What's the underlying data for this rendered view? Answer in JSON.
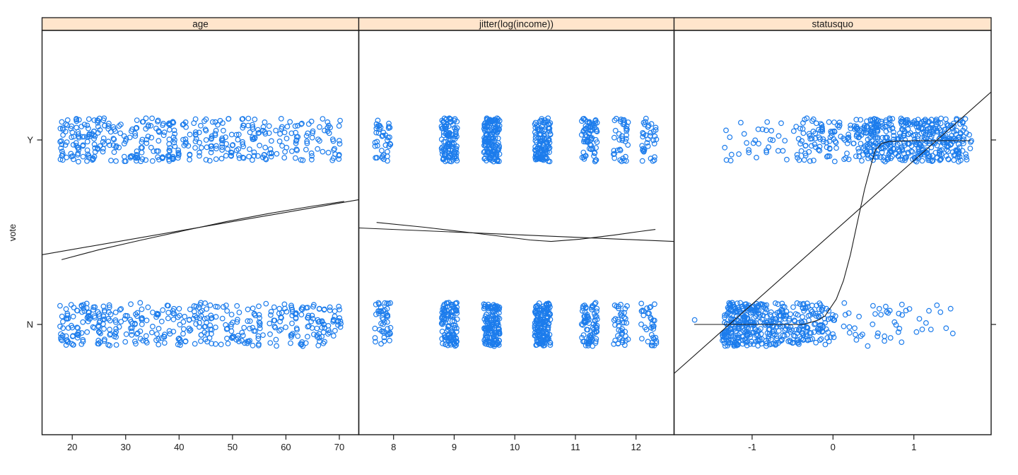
{
  "figure": {
    "ylab": "vote",
    "y_levels": [
      "Y",
      "N"
    ],
    "seed": 11,
    "colors": {
      "point": "#1C7CEC",
      "strip_fill": "#FFE5CC",
      "fit_line": "#1A1A1A",
      "border": "#1A1A1A",
      "background": "#FFFFFF"
    }
  },
  "chart_data": [
    {
      "type": "scatter",
      "title": "age",
      "x_tick_values": [
        20,
        30,
        40,
        50,
        60,
        70
      ],
      "x_range": [
        18,
        71
      ],
      "y_categories": [
        "Y",
        "N"
      ],
      "points": {
        "Y": {
          "kind": "uniform_int",
          "min": 18,
          "max": 70,
          "count": 430,
          "skew": 1.1,
          "xjitter": 0.3
        },
        "N": {
          "kind": "uniform_int",
          "min": 18,
          "max": 70,
          "count": 430,
          "skew": 1.1,
          "xjitter": 0.3
        }
      },
      "lines": {
        "linear": [
          [
            14.4,
            0.378
          ],
          [
            73.6,
            0.676
          ]
        ],
        "smooth": [
          [
            18.0,
            0.351
          ],
          [
            25.0,
            0.405
          ],
          [
            33.0,
            0.458
          ],
          [
            40.9,
            0.508
          ],
          [
            48.8,
            0.557
          ],
          [
            56.8,
            0.601
          ],
          [
            64.7,
            0.64
          ],
          [
            70.9,
            0.667
          ]
        ]
      }
    },
    {
      "type": "scatter",
      "title": "jitter(log(income))",
      "x_tick_values": [
        8,
        9,
        10,
        11,
        12
      ],
      "x_range": [
        7.7,
        12.35
      ],
      "y_categories": [
        "Y",
        "N"
      ],
      "points": {
        "Y": {
          "kind": "columns",
          "values": [
            7.82,
            8.92,
            9.62,
            10.46,
            11.23,
            11.74,
            12.21
          ],
          "counts": [
            40,
            110,
            150,
            120,
            70,
            38,
            35
          ],
          "xjitter": 0.13
        },
        "N": {
          "kind": "columns",
          "values": [
            7.82,
            8.92,
            9.62,
            10.46,
            11.23,
            11.74,
            12.21
          ],
          "counts": [
            45,
            110,
            145,
            155,
            75,
            40,
            35
          ],
          "xjitter": 0.13
        }
      },
      "lines": {
        "linear": [
          [
            7.43,
            0.523
          ],
          [
            12.62,
            0.45
          ]
        ],
        "smooth": [
          [
            7.72,
            0.553
          ],
          [
            8.51,
            0.527
          ],
          [
            9.21,
            0.5
          ],
          [
            9.79,
            0.477
          ],
          [
            10.25,
            0.458
          ],
          [
            10.6,
            0.45
          ],
          [
            11.07,
            0.462
          ],
          [
            11.65,
            0.485
          ],
          [
            12.06,
            0.504
          ],
          [
            12.32,
            0.515
          ]
        ]
      }
    },
    {
      "type": "scatter",
      "title": "statusquo",
      "x_tick_values": [
        -1,
        0,
        1
      ],
      "x_range": [
        -1.73,
        1.75
      ],
      "y_categories": [
        "Y",
        "N"
      ],
      "points": {
        "Y": {
          "kind": "clusters",
          "clusters": [
            {
              "range": [
                -1.35,
                -0.4
              ],
              "count": 40,
              "dist": "uniform"
            },
            {
              "range": [
                -0.4,
                0.1
              ],
              "count": 70,
              "dist": "uniform"
            },
            {
              "range": [
                0.1,
                0.55
              ],
              "count": 110,
              "dist": "inc"
            },
            {
              "range": [
                0.55,
                1.65
              ],
              "count": 340,
              "dist": "uniform"
            },
            {
              "range": [
                1.65,
                1.72
              ],
              "count": 5,
              "dist": "uniform"
            }
          ]
        },
        "N": {
          "kind": "clusters",
          "clusters": [
            {
              "range": [
                -1.37,
                -0.95
              ],
              "count": 200,
              "dist": "uniform"
            },
            {
              "range": [
                -0.95,
                -0.4
              ],
              "count": 150,
              "dist": "uniform"
            },
            {
              "range": [
                -0.4,
                0.12
              ],
              "count": 90,
              "dist": "dec"
            },
            {
              "range": [
                0.12,
                1.55
              ],
              "count": 48,
              "dist": "dec"
            },
            {
              "range": [
                -1.73,
                -1.71
              ],
              "count": 1,
              "dist": "uniform"
            }
          ]
        }
      },
      "lines": {
        "linear": [
          [
            -1.965,
            -0.266
          ],
          [
            1.955,
            1.26
          ]
        ],
        "smooth": [
          [
            -1.716,
            0.0
          ],
          [
            -0.361,
            0.0
          ],
          [
            -0.186,
            0.023
          ],
          [
            -0.099,
            0.046
          ],
          [
            0.041,
            0.137
          ],
          [
            0.129,
            0.237
          ],
          [
            0.216,
            0.378
          ],
          [
            0.303,
            0.557
          ],
          [
            0.391,
            0.733
          ],
          [
            0.469,
            0.863
          ],
          [
            0.522,
            0.943
          ],
          [
            0.601,
            0.981
          ],
          [
            0.697,
            0.992
          ],
          [
            0.976,
            0.996
          ],
          [
            1.702,
            0.996
          ]
        ]
      }
    }
  ]
}
